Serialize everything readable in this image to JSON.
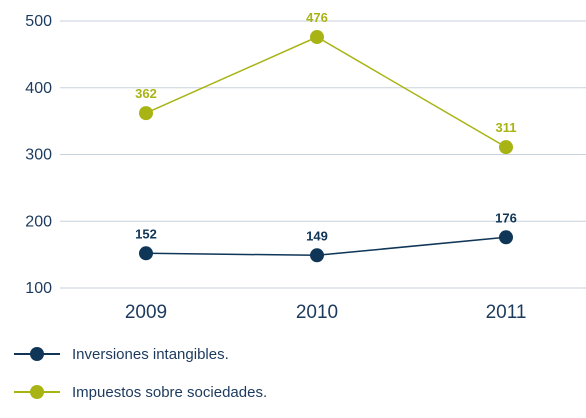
{
  "chart_data": {
    "type": "line",
    "categories": [
      "2009",
      "2010",
      "2011"
    ],
    "series": [
      {
        "name": "Inversiones intangibles.",
        "values": [
          152,
          149,
          176
        ],
        "labels": [
          "152",
          "149",
          "176"
        ],
        "color": "#0f3557"
      },
      {
        "name": "Impuestos sobre sociedades.",
        "values": [
          362,
          476,
          311
        ],
        "labels": [
          "362",
          "476",
          "311"
        ],
        "color": "#a8b414"
      }
    ],
    "yticks": [
      100,
      200,
      300,
      400,
      500
    ],
    "ylim": [
      100,
      500
    ],
    "grid": true,
    "legend_position": "bottom-left",
    "gridline_color": "#c8d2dc",
    "axis_text_color": "#1c3a5e"
  }
}
